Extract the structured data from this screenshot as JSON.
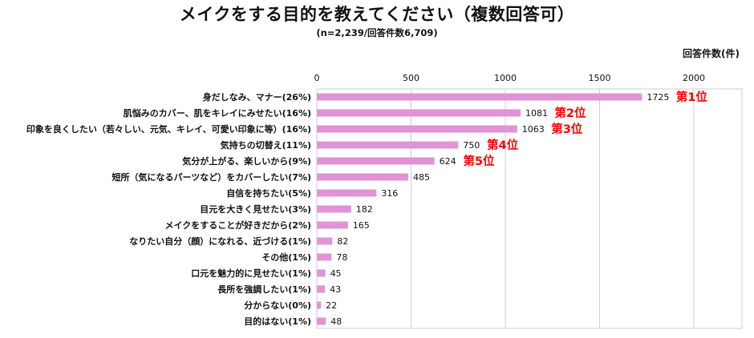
{
  "title": "メイクをする目的を教えてください（複数回答可）",
  "subtitle": "(n=2,239/回答件数6,709)",
  "unit_label": "回答件数(件)",
  "chart_data": {
    "type": "bar",
    "orientation": "horizontal",
    "categories": [
      "身だしなみ、マナー(26%)",
      "肌悩みのカバー、肌をキレイにみせたい(16%)",
      "印象を良くしたい（若々しい、元気、キレイ、可愛い印象に等）(16%)",
      "気持ちの切替え(11%)",
      "気分が上がる、楽しいから(9%)",
      "短所（気になるパーツなど）をカバーしたい(7%)",
      "自信を持ちたい(5%)",
      "目元を大きく見せたい(3%)",
      "メイクをすることが好きだから(2%)",
      "なりたい自分（顔）になれる、近づける(1%)",
      "その他(1%)",
      "口元を魅力的に見せたい(1%)",
      "長所を強調したい(1%)",
      "分からない(0%)",
      "目的はない(1%)"
    ],
    "values": [
      1725,
      1081,
      1063,
      750,
      624,
      485,
      316,
      182,
      165,
      82,
      78,
      45,
      43,
      22,
      48
    ],
    "value_labels": [
      "1725",
      "1081",
      "1063",
      "750",
      "624",
      "485",
      "316",
      "182",
      "165",
      "82",
      "78",
      "45",
      "43",
      "22",
      "48"
    ],
    "rank_labels": [
      "第1位",
      "第2位",
      "第3位",
      "第4位",
      "第5位"
    ],
    "xlim": [
      0,
      2250
    ],
    "xticks": [
      0,
      500,
      1000,
      1500,
      2000
    ],
    "xtick_labels": [
      "0",
      "500",
      "1000",
      "1500",
      "2000"
    ],
    "bar_color": "#e093d6",
    "rank_color": "#ff0000",
    "grid": "vertical",
    "xaxis_position": "top"
  }
}
